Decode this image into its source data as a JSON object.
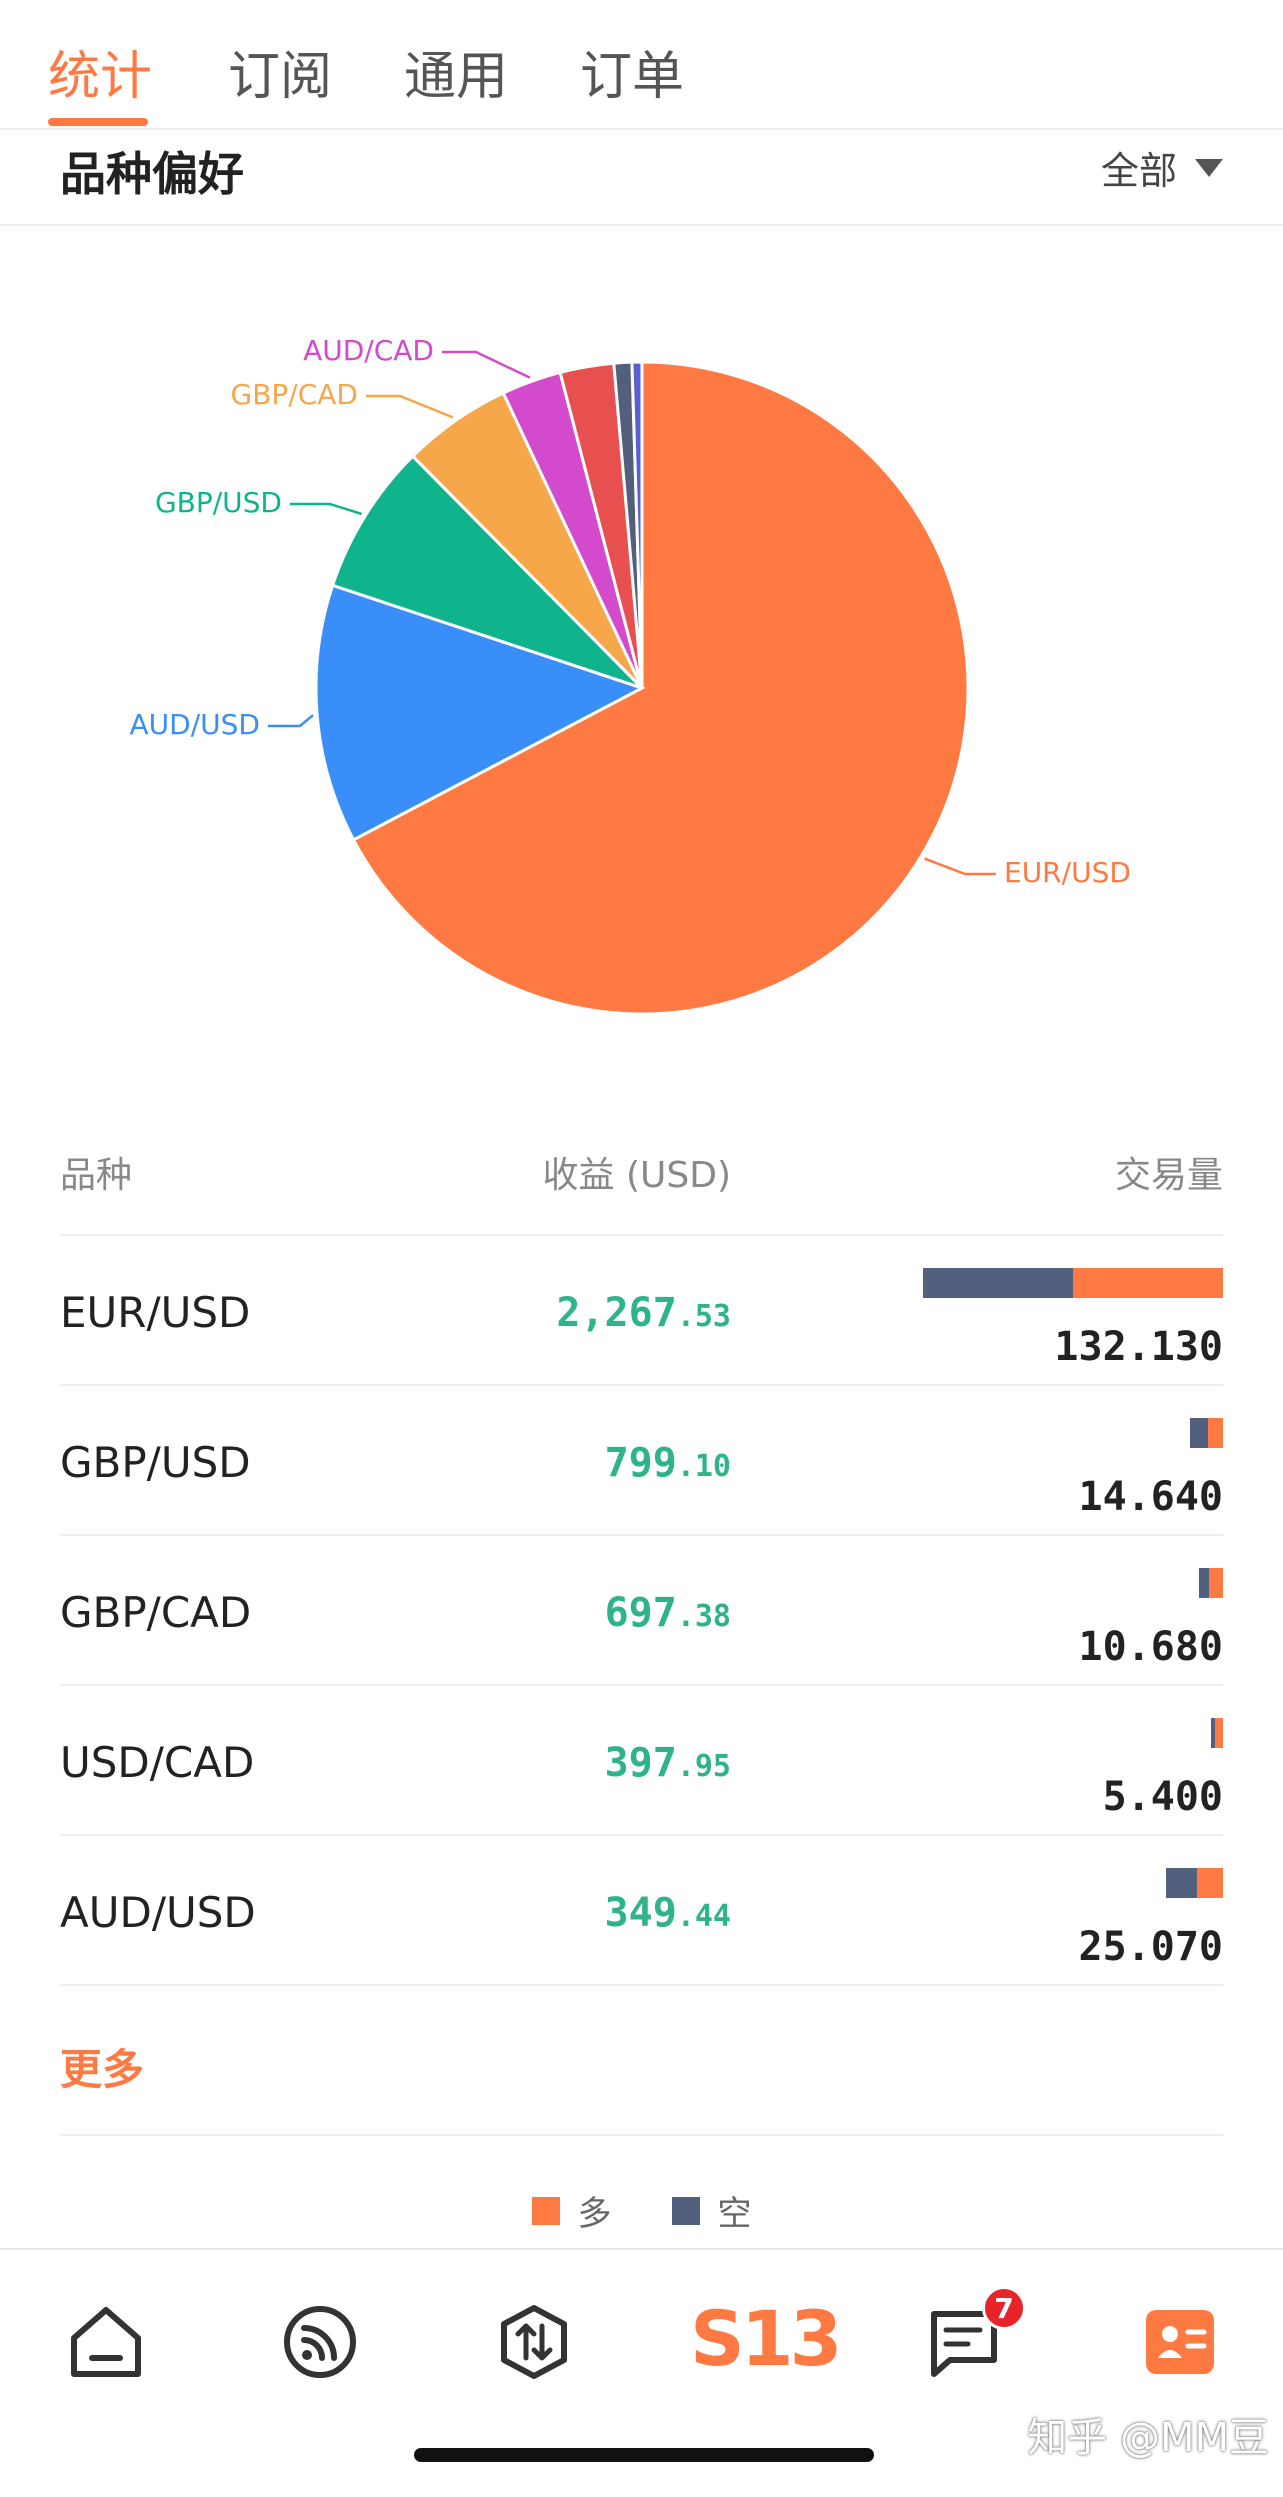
{
  "tabs": [
    {
      "label": "统计",
      "active": true
    },
    {
      "label": "订阅",
      "active": false
    },
    {
      "label": "通用",
      "active": false
    },
    {
      "label": "订单",
      "active": false
    }
  ],
  "section": {
    "title": "品种偏好",
    "filter_label": "全部"
  },
  "chart_data": {
    "type": "pie",
    "title": "",
    "categories": [
      "EUR/USD",
      "AUD/USD",
      "GBP/USD",
      "GBP/CAD",
      "AUD/CAD",
      "",
      "",
      ""
    ],
    "values": [
      68.3,
      13.0,
      7.6,
      5.5,
      3.0,
      2.7,
      0.9,
      0.5
    ],
    "colors": [
      "#ff7a43",
      "#3a8ef8",
      "#10b48c",
      "#f5a74a",
      "#d34bcc",
      "#e8504f",
      "#52607d",
      "#5b5fd4"
    ],
    "unit": "percent of trading volume"
  },
  "table": {
    "headers": {
      "symbol": "品种",
      "profit": "收益 (USD)",
      "volume": "交易量"
    },
    "rows": [
      {
        "symbol": "EUR/USD",
        "profit_int": "2,267",
        "profit_dec": ".53",
        "volume": "132.130",
        "short_frac": 0.5,
        "long_frac": 0.5
      },
      {
        "symbol": "GBP/USD",
        "profit_int": "799",
        "profit_dec": ".10",
        "volume": "14.640",
        "short_frac": 0.55,
        "long_frac": 0.45
      },
      {
        "symbol": "GBP/CAD",
        "profit_int": "697",
        "profit_dec": ".38",
        "volume": "10.680",
        "short_frac": 0.4,
        "long_frac": 0.6
      },
      {
        "symbol": "USD/CAD",
        "profit_int": "397",
        "profit_dec": ".95",
        "volume": "5.400",
        "short_frac": 0.3,
        "long_frac": 0.7
      },
      {
        "symbol": "AUD/USD",
        "profit_int": "349",
        "profit_dec": ".44",
        "volume": "25.070",
        "short_frac": 0.55,
        "long_frac": 0.45
      }
    ],
    "more_label": "更多"
  },
  "legend": {
    "long_label": "多",
    "short_label": "空",
    "long_color": "#ff7a43",
    "short_color": "#52607d"
  },
  "nav": {
    "items": [
      "home-icon",
      "feed-icon",
      "trade-icon",
      "s13-logo",
      "messages-icon",
      "profile-icon"
    ],
    "logo_text": "S13",
    "messages_badge": "7"
  },
  "watermark": "知乎 @MM豆"
}
